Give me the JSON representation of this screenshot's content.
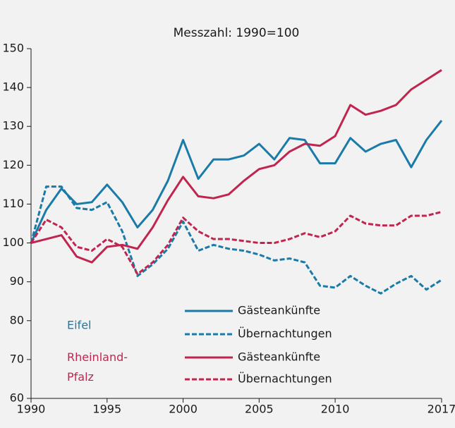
{
  "chart_data": {
    "type": "line",
    "title": "Messzahl: 1990=100",
    "x": [
      1990,
      1991,
      1992,
      1993,
      1994,
      1995,
      1996,
      1997,
      1998,
      1999,
      2000,
      2001,
      2002,
      2003,
      2004,
      2005,
      2006,
      2007,
      2008,
      2009,
      2010,
      2011,
      2012,
      2013,
      2014,
      2015,
      2016,
      2017
    ],
    "xlim": [
      1990,
      2017
    ],
    "xticks": [
      1990,
      1995,
      2000,
      2005,
      2010,
      2017
    ],
    "ylim": [
      60,
      150
    ],
    "yticks": [
      60,
      70,
      80,
      90,
      100,
      110,
      120,
      130,
      140,
      150
    ],
    "legend_groups": [
      {
        "name": "Eifel",
        "color": "#1a7aa8"
      },
      {
        "name": "Rheinland-Pfalz",
        "color": "#c0254f"
      }
    ],
    "series": [
      {
        "name": "Gästeankünfte",
        "color": "#1a7aa8",
        "dashed": false,
        "values": [
          100,
          108.5,
          114,
          110,
          110.5,
          115,
          110.5,
          104,
          108.5,
          116,
          126.5,
          116.5,
          121.5,
          121.5,
          122.5,
          125.5,
          121.5,
          127,
          126.5,
          120.5,
          120.5,
          127,
          123.5,
          125.5,
          126.5,
          119.5,
          126.5,
          131.5
        ]
      },
      {
        "name": "Übernachtungen",
        "color": "#1a7aa8",
        "dashed": true,
        "values": [
          100,
          114.5,
          114.5,
          109,
          108.5,
          110.5,
          103,
          91.5,
          94.5,
          98.5,
          105.5,
          98,
          99.5,
          98.5,
          98,
          97,
          95.5,
          96,
          95,
          89,
          88.5,
          91.5,
          89,
          87,
          89.5,
          91.5,
          88,
          90.5
        ]
      },
      {
        "name": "Gästeankünfte",
        "color": "#c0254f",
        "dashed": false,
        "values": [
          100,
          101,
          102,
          96.5,
          95,
          99,
          99.5,
          98.5,
          104,
          111,
          117,
          112,
          111.5,
          112.5,
          116,
          119,
          120,
          123.5,
          125.5,
          125,
          127.5,
          135.5,
          133,
          134,
          135.5,
          139.5,
          142,
          144.5
        ]
      },
      {
        "name": "Übernachtungen",
        "color": "#c0254f",
        "dashed": true,
        "values": [
          100,
          106,
          104,
          99,
          98,
          101,
          99,
          92,
          95,
          99.5,
          106.5,
          103,
          101,
          101,
          100.5,
          100,
          100,
          101,
          102.5,
          101.5,
          103,
          107,
          105,
          104.5,
          104.5,
          107,
          107,
          108
        ]
      }
    ]
  }
}
